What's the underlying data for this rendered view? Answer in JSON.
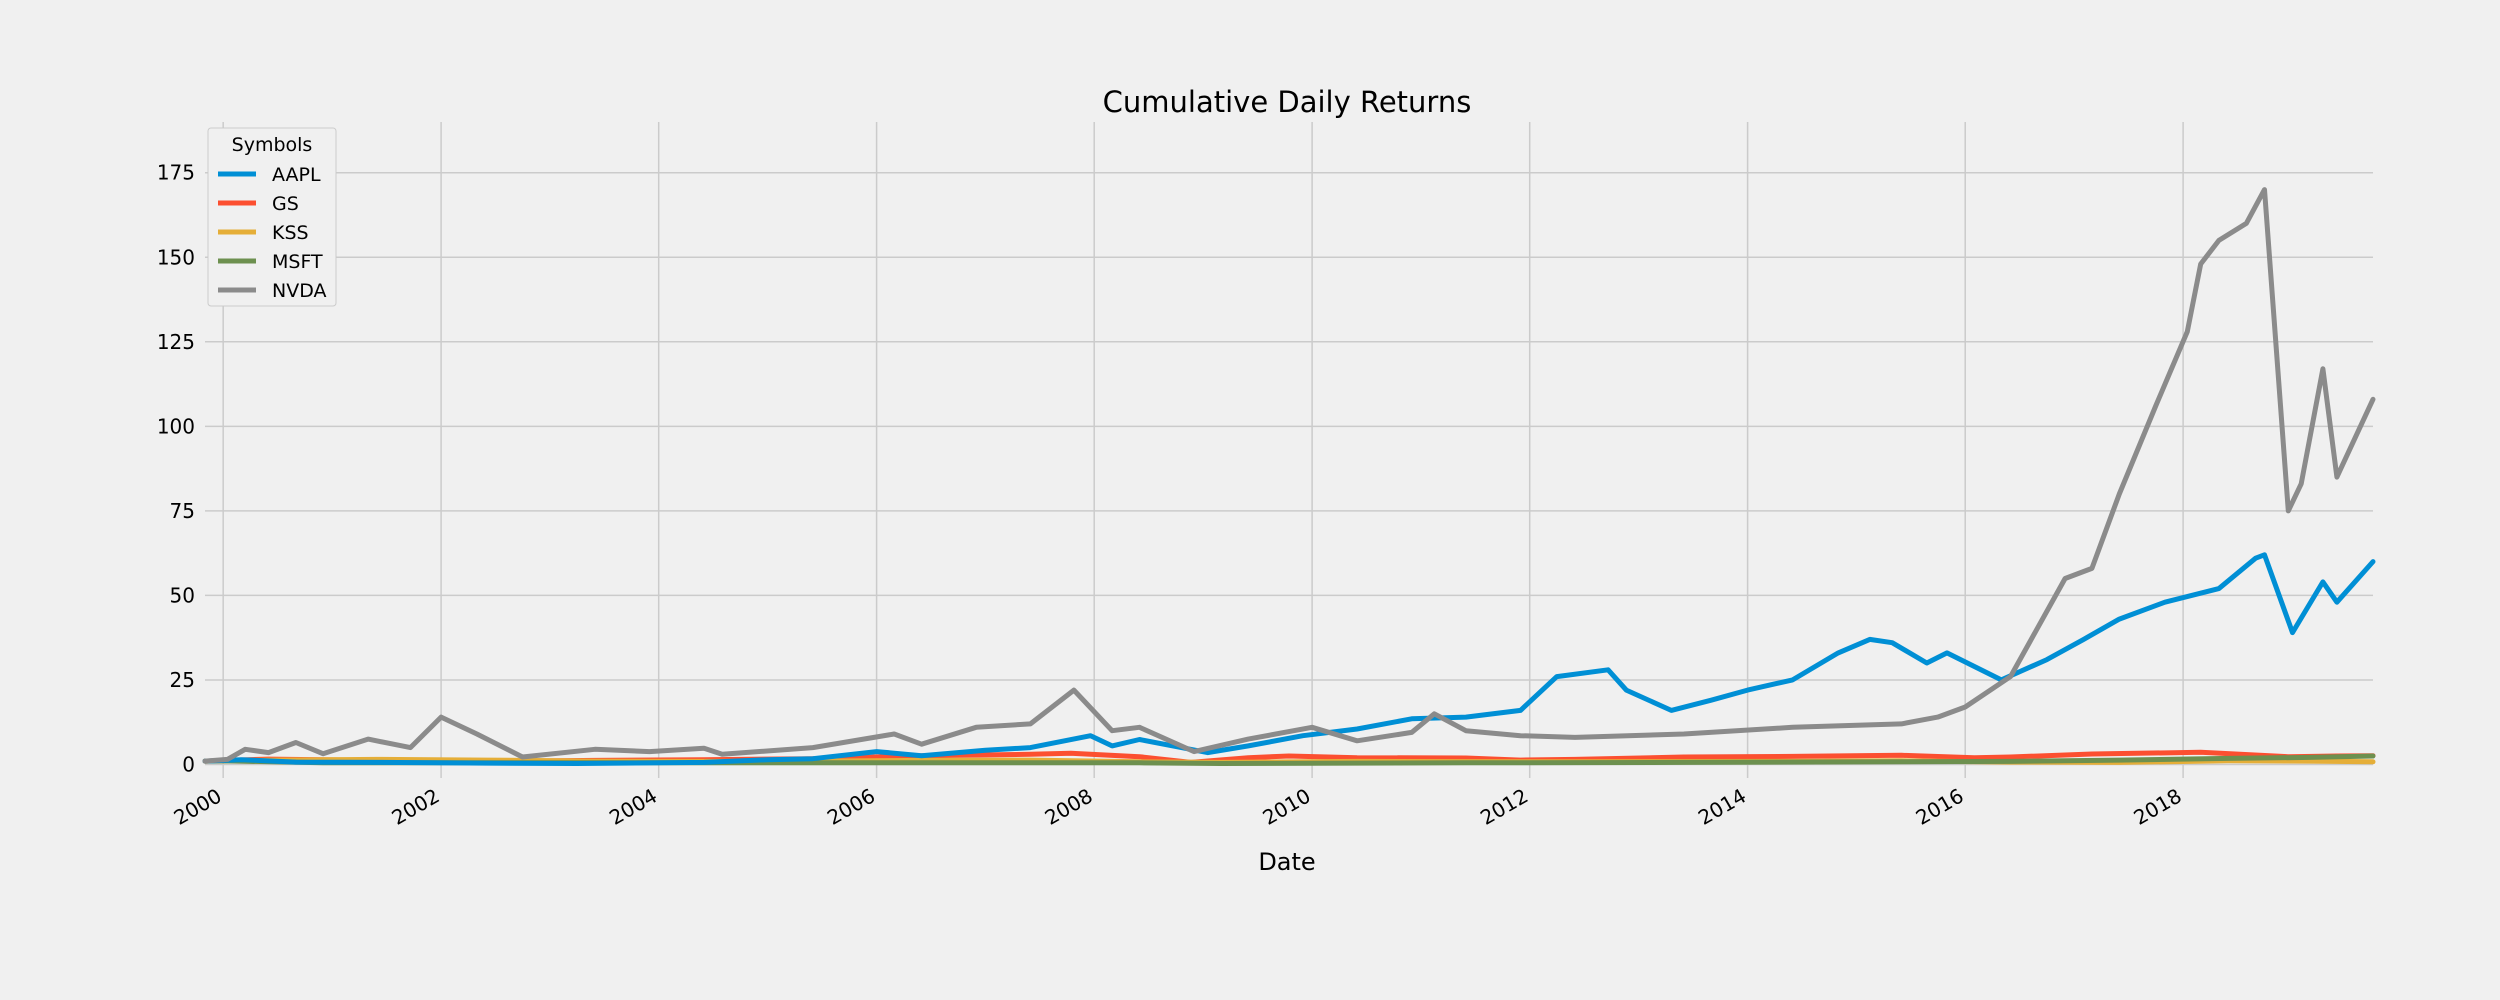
{
  "chart_data": {
    "type": "line",
    "title": "Cumulative Daily Returns",
    "xlabel": "Date",
    "ylabel": "",
    "x_range": [
      "1999-11-01",
      "2019-09-30"
    ],
    "ylim": [
      -4,
      190
    ],
    "grid": true,
    "background": "#f0f0f0",
    "grid_color": "#cbcbcb",
    "x_ticks": [
      {
        "date": "2000-01-01",
        "label": "2000"
      },
      {
        "date": "2002-01-01",
        "label": "2002"
      },
      {
        "date": "2004-01-01",
        "label": "2004"
      },
      {
        "date": "2006-01-01",
        "label": "2006"
      },
      {
        "date": "2008-01-01",
        "label": "2008"
      },
      {
        "date": "2010-01-01",
        "label": "2010"
      },
      {
        "date": "2012-01-01",
        "label": "2012"
      },
      {
        "date": "2014-01-01",
        "label": "2014"
      },
      {
        "date": "2016-01-01",
        "label": "2016"
      },
      {
        "date": "2018-01-01",
        "label": "2018"
      }
    ],
    "y_ticks": [
      0,
      25,
      50,
      75,
      100,
      125,
      150,
      175
    ],
    "legend": {
      "title": "Symbols",
      "position": "top-left"
    },
    "series": [
      {
        "name": "GS",
        "color": "#fc4f30",
        "points": [
          [
            "1999-11-01",
            1.0
          ],
          [
            "2000-06-01",
            1.6
          ],
          [
            "2001-06-01",
            1.2
          ],
          [
            "2002-06-01",
            0.9
          ],
          [
            "2003-06-01",
            1.2
          ],
          [
            "2004-06-01",
            1.4
          ],
          [
            "2005-06-01",
            1.7
          ],
          [
            "2006-06-01",
            2.6
          ],
          [
            "2007-06-01",
            3.0
          ],
          [
            "2007-10-15",
            3.3
          ],
          [
            "2008-06-01",
            2.3
          ],
          [
            "2008-11-20",
            0.6
          ],
          [
            "2009-06-01",
            2.0
          ],
          [
            "2009-10-15",
            2.5
          ],
          [
            "2010-06-01",
            2.0
          ],
          [
            "2011-06-01",
            1.9
          ],
          [
            "2011-12-01",
            1.3
          ],
          [
            "2012-06-01",
            1.5
          ],
          [
            "2013-06-01",
            2.2
          ],
          [
            "2014-06-01",
            2.4
          ],
          [
            "2015-06-01",
            2.7
          ],
          [
            "2016-02-01",
            2.0
          ],
          [
            "2016-06-01",
            2.2
          ],
          [
            "2017-03-01",
            3.1
          ],
          [
            "2018-03-01",
            3.6
          ],
          [
            "2018-12-20",
            2.3
          ],
          [
            "2019-06-01",
            2.5
          ],
          [
            "2019-09-30",
            2.6
          ]
        ]
      },
      {
        "name": "KSS",
        "color": "#e5ae38",
        "points": [
          [
            "1999-11-01",
            1.0
          ],
          [
            "2000-06-01",
            1.3
          ],
          [
            "2001-06-01",
            1.5
          ],
          [
            "2002-06-01",
            1.3
          ],
          [
            "2003-06-01",
            1.0
          ],
          [
            "2004-06-01",
            0.9
          ],
          [
            "2005-06-01",
            1.0
          ],
          [
            "2006-06-01",
            1.2
          ],
          [
            "2007-06-01",
            1.3
          ],
          [
            "2008-06-01",
            0.8
          ],
          [
            "2009-03-01",
            0.6
          ],
          [
            "2010-06-01",
            0.9
          ],
          [
            "2012-06-01",
            0.8
          ],
          [
            "2014-06-01",
            0.9
          ],
          [
            "2015-06-01",
            1.1
          ],
          [
            "2016-06-01",
            0.7
          ],
          [
            "2017-06-01",
            0.6
          ],
          [
            "2018-06-01",
            1.1
          ],
          [
            "2019-03-01",
            1.0
          ],
          [
            "2019-09-30",
            0.8
          ]
        ]
      },
      {
        "name": "MSFT",
        "color": "#6d904f",
        "points": [
          [
            "1999-11-01",
            1.0
          ],
          [
            "2000-01-01",
            1.1
          ],
          [
            "2000-12-01",
            0.5
          ],
          [
            "2002-06-01",
            0.5
          ],
          [
            "2004-06-01",
            0.5
          ],
          [
            "2006-06-01",
            0.5
          ],
          [
            "2008-06-01",
            0.5
          ],
          [
            "2009-03-01",
            0.3
          ],
          [
            "2011-06-01",
            0.5
          ],
          [
            "2013-06-01",
            0.6
          ],
          [
            "2015-06-01",
            0.8
          ],
          [
            "2016-06-01",
            0.9
          ],
          [
            "2017-06-01",
            1.3
          ],
          [
            "2018-06-01",
            1.8
          ],
          [
            "2019-03-01",
            2.1
          ],
          [
            "2019-09-30",
            2.5
          ]
        ]
      },
      {
        "name": "AAPL",
        "color": "#008fd5",
        "points": [
          [
            "1999-11-01",
            1.0
          ],
          [
            "2000-03-01",
            1.4
          ],
          [
            "2000-09-01",
            0.7
          ],
          [
            "2001-06-01",
            0.6
          ],
          [
            "2002-06-01",
            0.4
          ],
          [
            "2003-04-01",
            0.3
          ],
          [
            "2004-06-01",
            0.6
          ],
          [
            "2005-01-01",
            1.4
          ],
          [
            "2005-06-01",
            1.7
          ],
          [
            "2006-01-01",
            3.8
          ],
          [
            "2006-06-01",
            2.6
          ],
          [
            "2007-01-01",
            4.2
          ],
          [
            "2007-06-01",
            5.0
          ],
          [
            "2007-12-20",
            8.5
          ],
          [
            "2008-03-01",
            5.5
          ],
          [
            "2008-06-01",
            7.4
          ],
          [
            "2009-01-15",
            3.5
          ],
          [
            "2009-06-01",
            5.5
          ],
          [
            "2009-12-01",
            8.5
          ],
          [
            "2010-06-01",
            10.5
          ],
          [
            "2010-12-01",
            13.5
          ],
          [
            "2011-06-01",
            14.0
          ],
          [
            "2011-12-01",
            16.0
          ],
          [
            "2012-04-01",
            26.0
          ],
          [
            "2012-09-20",
            28.0
          ],
          [
            "2012-11-20",
            22.0
          ],
          [
            "2013-04-20",
            16.0
          ],
          [
            "2013-09-01",
            19.0
          ],
          [
            "2014-01-01",
            22.0
          ],
          [
            "2014-06-01",
            25.0
          ],
          [
            "2014-11-01",
            33.0
          ],
          [
            "2015-02-15",
            37.0
          ],
          [
            "2015-05-01",
            36.0
          ],
          [
            "2015-08-25",
            30.0
          ],
          [
            "2015-11-01",
            33.0
          ],
          [
            "2016-05-01",
            25.0
          ],
          [
            "2016-10-01",
            31.0
          ],
          [
            "2017-02-01",
            37.0
          ],
          [
            "2017-06-01",
            43.0
          ],
          [
            "2017-11-01",
            48.0
          ],
          [
            "2018-05-01",
            52.0
          ],
          [
            "2018-09-01",
            61.0
          ],
          [
            "2018-10-01",
            62.0
          ],
          [
            "2019-01-03",
            39.0
          ],
          [
            "2019-04-15",
            54.0
          ],
          [
            "2019-06-01",
            48.0
          ],
          [
            "2019-09-30",
            60.0
          ]
        ]
      },
      {
        "name": "NVDA",
        "color": "#8b8b8b",
        "points": [
          [
            "1999-11-01",
            1.0
          ],
          [
            "2000-01-15",
            1.5
          ],
          [
            "2000-03-15",
            4.5
          ],
          [
            "2000-06-01",
            3.5
          ],
          [
            "2000-09-01",
            6.5
          ],
          [
            "2000-12-01",
            3.2
          ],
          [
            "2001-05-01",
            7.5
          ],
          [
            "2001-09-20",
            5.0
          ],
          [
            "2002-01-01",
            14.0
          ],
          [
            "2002-05-01",
            9.0
          ],
          [
            "2002-10-01",
            2.2
          ],
          [
            "2003-06-01",
            4.5
          ],
          [
            "2003-12-01",
            3.8
          ],
          [
            "2004-06-01",
            4.8
          ],
          [
            "2004-08-01",
            3.0
          ],
          [
            "2005-06-01",
            5.0
          ],
          [
            "2006-03-01",
            9.0
          ],
          [
            "2006-06-01",
            6.0
          ],
          [
            "2006-12-01",
            11.0
          ],
          [
            "2007-06-01",
            12.0
          ],
          [
            "2007-10-25",
            22.0
          ],
          [
            "2008-03-01",
            10.0
          ],
          [
            "2008-06-01",
            11.0
          ],
          [
            "2008-12-01",
            3.8
          ],
          [
            "2009-06-01",
            7.5
          ],
          [
            "2010-01-01",
            11.0
          ],
          [
            "2010-06-01",
            7.0
          ],
          [
            "2010-12-01",
            9.5
          ],
          [
            "2011-02-15",
            15.0
          ],
          [
            "2011-06-01",
            10.0
          ],
          [
            "2011-12-01",
            8.5
          ],
          [
            "2012-06-01",
            8.0
          ],
          [
            "2013-06-01",
            9.0
          ],
          [
            "2014-06-01",
            11.0
          ],
          [
            "2015-06-01",
            12.0
          ],
          [
            "2015-10-01",
            14.0
          ],
          [
            "2016-01-01",
            17.0
          ],
          [
            "2016-06-01",
            26.0
          ],
          [
            "2016-12-01",
            55.0
          ],
          [
            "2017-03-01",
            58.0
          ],
          [
            "2017-06-01",
            80.0
          ],
          [
            "2017-10-01",
            106.0
          ],
          [
            "2018-01-15",
            128.0
          ],
          [
            "2018-03-01",
            148.0
          ],
          [
            "2018-05-01",
            155.0
          ],
          [
            "2018-08-01",
            160.0
          ],
          [
            "2018-10-01",
            170.0
          ],
          [
            "2018-12-20",
            75.0
          ],
          [
            "2019-02-01",
            83.0
          ],
          [
            "2019-04-15",
            117.0
          ],
          [
            "2019-06-01",
            85.0
          ],
          [
            "2019-09-30",
            108.0
          ]
        ]
      }
    ]
  }
}
